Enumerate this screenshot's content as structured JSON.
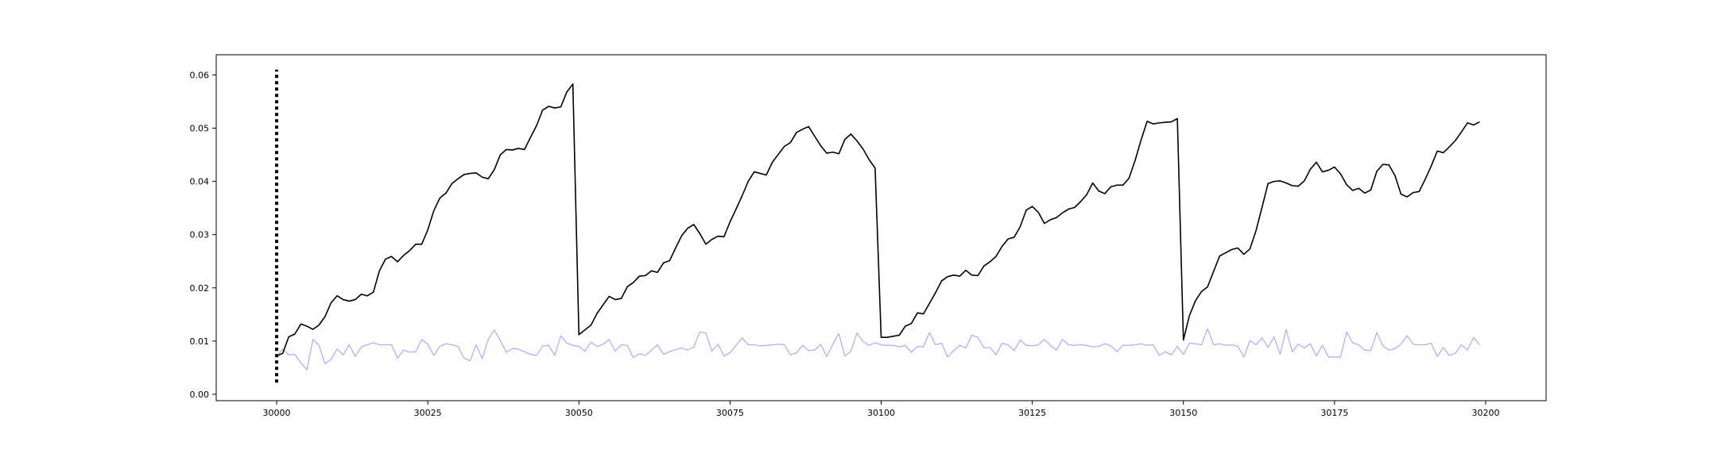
{
  "chart_data": {
    "type": "line",
    "title": "",
    "xlabel": "",
    "ylabel": "",
    "xlim": [
      29990,
      30210
    ],
    "ylim": [
      -0.0012,
      0.0638
    ],
    "xticks": [
      30000,
      30025,
      30050,
      30075,
      30100,
      30125,
      30150,
      30175,
      30200
    ],
    "xtick_labels": [
      "30000",
      "30025",
      "30050",
      "30075",
      "30100",
      "30125",
      "30150",
      "30175",
      "30200"
    ],
    "yticks": [
      0.0,
      0.01,
      0.02,
      0.03,
      0.04,
      0.05,
      0.06
    ],
    "ytick_labels": [
      "0.00",
      "0.01",
      "0.02",
      "0.03",
      "0.04",
      "0.05",
      "0.06"
    ],
    "grid": false,
    "legend": "none",
    "vline": {
      "x": 30000,
      "y_from": 0.0022,
      "y_to": 0.061,
      "style": "dotted",
      "color": "#000000"
    },
    "series": [
      {
        "color": "#000000",
        "x_start": 30000,
        "values": [
          0.0072,
          0.0077,
          0.0108,
          0.0113,
          0.0132,
          0.0128,
          0.0122,
          0.013,
          0.0146,
          0.0172,
          0.0185,
          0.0178,
          0.0175,
          0.0178,
          0.0188,
          0.0185,
          0.0192,
          0.0232,
          0.0254,
          0.0259,
          0.0249,
          0.0261,
          0.027,
          0.0282,
          0.0282,
          0.0309,
          0.0345,
          0.0369,
          0.0378,
          0.0396,
          0.0405,
          0.0413,
          0.0415,
          0.0416,
          0.0408,
          0.0405,
          0.0422,
          0.045,
          0.046,
          0.0459,
          0.0462,
          0.046,
          0.0483,
          0.0505,
          0.0534,
          0.0541,
          0.0538,
          0.054,
          0.0568,
          0.0583,
          0.0112,
          0.0121,
          0.013,
          0.0152,
          0.0168,
          0.0184,
          0.0178,
          0.018,
          0.0202,
          0.021,
          0.0222,
          0.0223,
          0.0232,
          0.0229,
          0.0247,
          0.0251,
          0.0275,
          0.0298,
          0.0312,
          0.0319,
          0.0302,
          0.0282,
          0.0291,
          0.0297,
          0.0296,
          0.0324,
          0.0348,
          0.0373,
          0.04,
          0.0418,
          0.0415,
          0.0412,
          0.0436,
          0.0451,
          0.0466,
          0.0473,
          0.0492,
          0.0498,
          0.0503,
          0.0485,
          0.0467,
          0.0453,
          0.0455,
          0.0452,
          0.0479,
          0.0489,
          0.0476,
          0.0461,
          0.0441,
          0.0425,
          0.0107,
          0.0107,
          0.0109,
          0.0111,
          0.0128,
          0.0133,
          0.0153,
          0.0151,
          0.0171,
          0.0191,
          0.0213,
          0.0221,
          0.0224,
          0.0222,
          0.0233,
          0.0224,
          0.0223,
          0.0241,
          0.0249,
          0.0259,
          0.0278,
          0.0292,
          0.0295,
          0.0315,
          0.0346,
          0.0353,
          0.0342,
          0.0321,
          0.0328,
          0.0332,
          0.0341,
          0.0348,
          0.0351,
          0.0362,
          0.0375,
          0.0397,
          0.0382,
          0.0377,
          0.039,
          0.0393,
          0.0393,
          0.0406,
          0.0439,
          0.0478,
          0.0513,
          0.0508,
          0.051,
          0.0511,
          0.0512,
          0.0518,
          0.0102,
          0.0148,
          0.0176,
          0.0193,
          0.0202,
          0.0231,
          0.026,
          0.0266,
          0.0272,
          0.0275,
          0.0263,
          0.0273,
          0.0307,
          0.0351,
          0.0396,
          0.04,
          0.0401,
          0.0397,
          0.0392,
          0.0391,
          0.0401,
          0.0423,
          0.0436,
          0.0418,
          0.0421,
          0.0427,
          0.0414,
          0.0394,
          0.0383,
          0.0387,
          0.0378,
          0.0384,
          0.0419,
          0.0432,
          0.0431,
          0.0411,
          0.0376,
          0.0371,
          0.0379,
          0.0381,
          0.0404,
          0.0429,
          0.0457,
          0.0454,
          0.0465,
          0.0477,
          0.0493,
          0.051,
          0.0506,
          0.0512
        ]
      },
      {
        "color": "#aaaaff",
        "x_start": 30000,
        "values": [
          0.0072,
          0.0085,
          0.0074,
          0.0075,
          0.0059,
          0.0046,
          0.0103,
          0.0092,
          0.0057,
          0.0066,
          0.0085,
          0.0074,
          0.0093,
          0.0071,
          0.0089,
          0.0093,
          0.0097,
          0.0093,
          0.0093,
          0.0093,
          0.0068,
          0.0083,
          0.0079,
          0.008,
          0.0103,
          0.0094,
          0.0073,
          0.009,
          0.0095,
          0.0093,
          0.009,
          0.0068,
          0.0063,
          0.0093,
          0.0067,
          0.0103,
          0.0121,
          0.0101,
          0.0079,
          0.0086,
          0.0085,
          0.008,
          0.0075,
          0.0073,
          0.0091,
          0.0092,
          0.0073,
          0.011,
          0.0096,
          0.0092,
          0.009,
          0.0081,
          0.0098,
          0.009,
          0.0094,
          0.0103,
          0.0081,
          0.0093,
          0.0092,
          0.0069,
          0.0076,
          0.0073,
          0.0083,
          0.0093,
          0.0075,
          0.008,
          0.0084,
          0.0087,
          0.0083,
          0.0089,
          0.0117,
          0.0115,
          0.0081,
          0.0094,
          0.0072,
          0.0078,
          0.0092,
          0.0106,
          0.0093,
          0.0093,
          0.0091,
          0.0092,
          0.0093,
          0.0094,
          0.0093,
          0.0074,
          0.0078,
          0.0092,
          0.0082,
          0.0083,
          0.0094,
          0.0071,
          0.0094,
          0.0114,
          0.0072,
          0.0081,
          0.0115,
          0.0099,
          0.0092,
          0.0097,
          0.0093,
          0.0092,
          0.0092,
          0.0089,
          0.0092,
          0.0079,
          0.009,
          0.0089,
          0.0116,
          0.0093,
          0.0096,
          0.007,
          0.0082,
          0.0092,
          0.0087,
          0.0111,
          0.0107,
          0.0087,
          0.0088,
          0.0074,
          0.0096,
          0.0093,
          0.0082,
          0.0102,
          0.0092,
          0.0091,
          0.0093,
          0.0103,
          0.0092,
          0.0083,
          0.0103,
          0.0093,
          0.0092,
          0.0093,
          0.0092,
          0.0089,
          0.009,
          0.0095,
          0.0091,
          0.008,
          0.0092,
          0.0092,
          0.0093,
          0.0095,
          0.0092,
          0.0093,
          0.0073,
          0.008,
          0.0074,
          0.009,
          0.0075,
          0.0096,
          0.0095,
          0.0093,
          0.0123,
          0.0093,
          0.0095,
          0.0092,
          0.0093,
          0.009,
          0.007,
          0.0101,
          0.0093,
          0.0106,
          0.0088,
          0.0108,
          0.0075,
          0.0122,
          0.008,
          0.0094,
          0.0087,
          0.0095,
          0.0072,
          0.0092,
          0.007,
          0.007,
          0.007,
          0.0117,
          0.0097,
          0.0093,
          0.0083,
          0.0082,
          0.0116,
          0.0091,
          0.0083,
          0.0086,
          0.0094,
          0.011,
          0.0094,
          0.0093,
          0.0093,
          0.0096,
          0.0071,
          0.0088,
          0.0073,
          0.0077,
          0.0093,
          0.0083,
          0.0107,
          0.0093
        ]
      }
    ]
  }
}
